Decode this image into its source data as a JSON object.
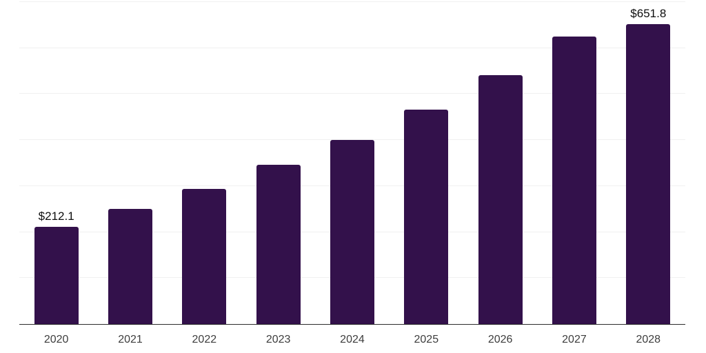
{
  "chart_data": {
    "type": "bar",
    "categories": [
      "2020",
      "2021",
      "2022",
      "2023",
      "2024",
      "2025",
      "2026",
      "2027",
      "2028"
    ],
    "values": [
      212.1,
      250.8,
      293.8,
      345.8,
      400.7,
      466.2,
      540.7,
      624.6,
      651.8
    ],
    "data_labels": [
      "$212.1",
      "",
      "",
      "",
      "",
      "",
      "",
      "",
      "$651.8"
    ],
    "currency_prefix": "$",
    "xlabel": "",
    "ylabel": "",
    "ylim": [
      0,
      700
    ],
    "grid_step": 100,
    "grid": true,
    "y_tick_labels_shown": false,
    "legend_position": "none",
    "colors": {
      "bar": "#33114B",
      "gridline": "#F0F0F0",
      "axis": "#2B2B2B",
      "value_label": "#0D0D0D",
      "tick_label": "#3D3D3D",
      "background": "#FFFFFF"
    }
  }
}
